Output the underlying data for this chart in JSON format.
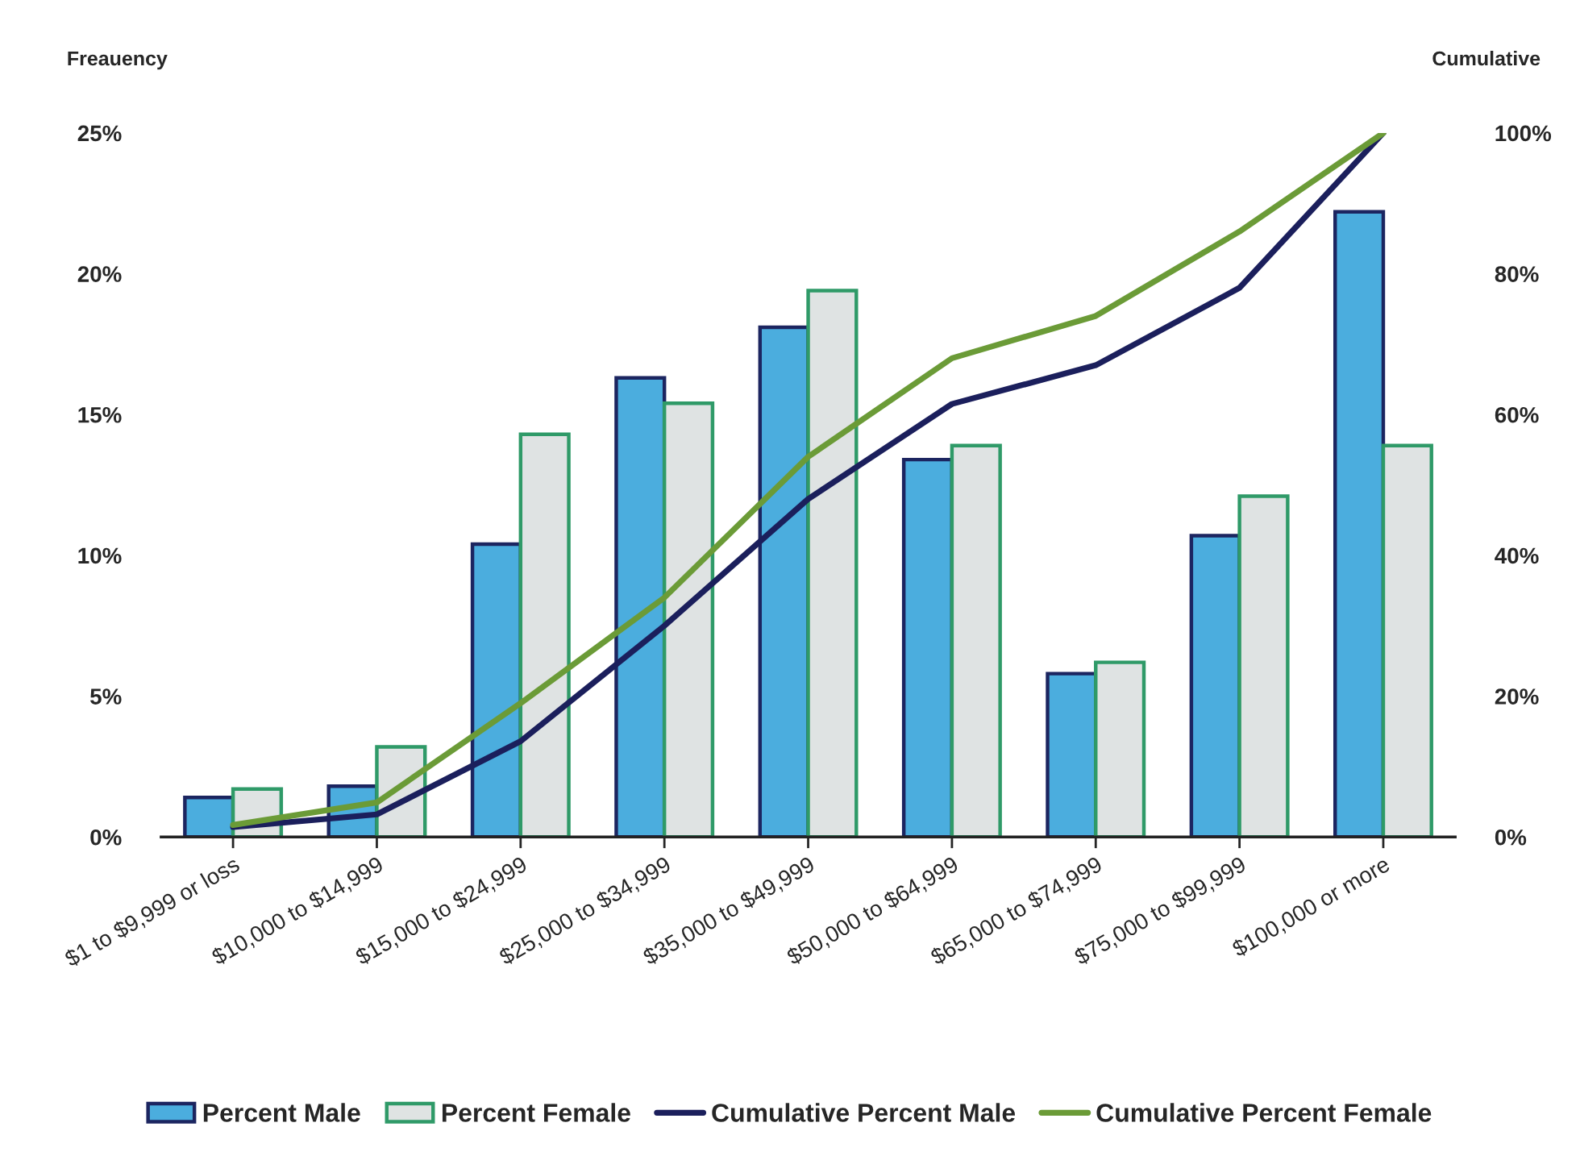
{
  "chart_data": {
    "type": "bar",
    "categories": [
      "$1 to $9,999 or loss",
      "$10,000 to $14,999",
      "$15,000 to $24,999",
      "$25,000 to $34,999",
      "$35,000 to $49,999",
      "$50,000 to $64,999",
      "$65,000 to $74,999",
      "$75,000 to $99,999",
      "$100,000 or more"
    ],
    "ylabel": "Freauency",
    "y2label": "Cumulative",
    "ylim": [
      0,
      25
    ],
    "yticks": [
      {
        "value": 0,
        "label": "0%"
      },
      {
        "value": 5,
        "label": "5%"
      },
      {
        "value": 10,
        "label": "10%"
      },
      {
        "value": 15,
        "label": "15%"
      },
      {
        "value": 20,
        "label": "20%"
      },
      {
        "value": 25,
        "label": "25%"
      }
    ],
    "y2lim": [
      0,
      100
    ],
    "y2ticks": [
      {
        "value": 0,
        "label": "0%"
      },
      {
        "value": 20,
        "label": "20%"
      },
      {
        "value": 40,
        "label": "40%"
      },
      {
        "value": 60,
        "label": "60%"
      },
      {
        "value": 80,
        "label": "80%"
      },
      {
        "value": 100,
        "label": "100%"
      }
    ],
    "series": [
      {
        "name": "Percent Male",
        "color": "#4badde",
        "values": [
          1.4,
          1.8,
          10.4,
          16.3,
          18.1,
          13.4,
          5.8,
          10.7,
          22.2
        ]
      },
      {
        "name": "Percent Female",
        "color": "#dfe3e3",
        "values": [
          1.7,
          3.2,
          14.3,
          15.4,
          19.4,
          13.9,
          6.2,
          12.1,
          13.9
        ]
      },
      {
        "name": "Cumulative Percent Male",
        "type": "line",
        "axis": "y2",
        "color": "#1b1f5c",
        "values": [
          1.4,
          3.2,
          13.6,
          30,
          48,
          61.5,
          67,
          78,
          100
        ]
      },
      {
        "name": "Cumulative Percent Female",
        "type": "line",
        "axis": "y2",
        "color": "#6b9b37",
        "values": [
          1.7,
          4.9,
          19,
          34,
          54,
          68,
          74,
          86,
          100
        ]
      }
    ],
    "legend": "bottom",
    "grid": false,
    "line_style": "solid"
  }
}
